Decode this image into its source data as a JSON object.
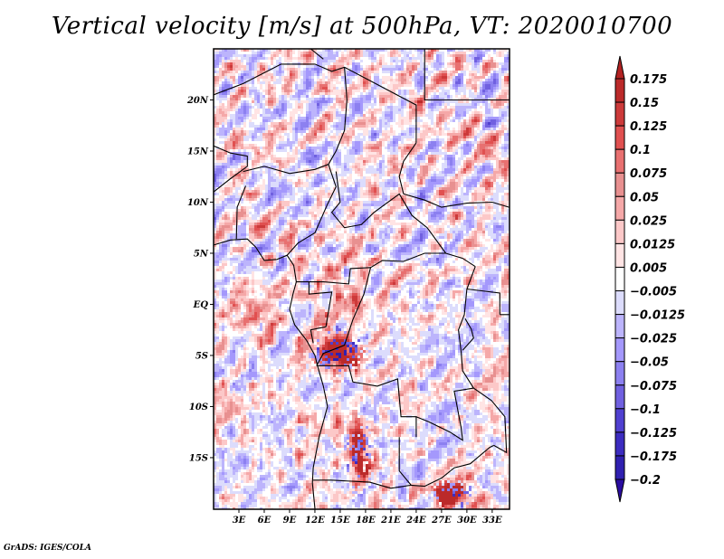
{
  "title": "Vertical velocity [m/s] at 500hPa, VT: 2020010700",
  "footer": "GrADS: IGES/COLA",
  "chart_data": {
    "type": "heatmap",
    "title": "Vertical velocity [m/s] at 500hPa, VT: 2020010700",
    "variable": "Vertical velocity",
    "units": "m/s",
    "level": "500hPa",
    "valid_time": "2020010700",
    "xlabel": "",
    "ylabel": "",
    "lon_range": [
      0,
      35
    ],
    "lat_range": [
      -20,
      25
    ],
    "lon_ticks": [
      {
        "value": 3,
        "label": "3E"
      },
      {
        "value": 6,
        "label": "6E"
      },
      {
        "value": 9,
        "label": "9E"
      },
      {
        "value": 12,
        "label": "12E"
      },
      {
        "value": 15,
        "label": "15E"
      },
      {
        "value": 18,
        "label": "18E"
      },
      {
        "value": 21,
        "label": "21E"
      },
      {
        "value": 24,
        "label": "24E"
      },
      {
        "value": 27,
        "label": "27E"
      },
      {
        "value": 30,
        "label": "30E"
      },
      {
        "value": 33,
        "label": "33E"
      }
    ],
    "lat_ticks": [
      {
        "value": 20,
        "label": "20N"
      },
      {
        "value": 15,
        "label": "15N"
      },
      {
        "value": 10,
        "label": "10N"
      },
      {
        "value": 5,
        "label": "5N"
      },
      {
        "value": 0,
        "label": "EQ"
      },
      {
        "value": -5,
        "label": "5S"
      },
      {
        "value": -10,
        "label": "10S"
      },
      {
        "value": -15,
        "label": "15S"
      }
    ],
    "colorbar": {
      "position": "right",
      "levels": [
        "0.175",
        "0.15",
        "0.125",
        "0.1",
        "0.075",
        "0.05",
        "0.025",
        "0.0125",
        "0.005",
        "−0.005",
        "−0.0125",
        "−0.025",
        "−0.05",
        "−0.075",
        "−0.1",
        "−0.125",
        "−0.175",
        "−0.2"
      ],
      "top_triangle_color": "#b22222",
      "bottom_triangle_color": "#2a0ca0",
      "box_colors": [
        "#bb2a2a",
        "#cc3a3a",
        "#e05050",
        "#e87070",
        "#e89090",
        "#f5a8a8",
        "#fcc8c8",
        "#ffe4e4",
        "#ffffff",
        "#dcdcfc",
        "#bcb4fc",
        "#a498fc",
        "#8c80f0",
        "#7060e0",
        "#5040d0",
        "#3c2cc0",
        "#3020b0"
      ]
    },
    "field_description": "Filled contours of 500hPa vertical velocity over Central/West Africa; mostly weak mixed positive/negative values with strong positive (red) cores over coastal Congo/Angola (~12-16E, 3-8S), Angola highlands (~15-18E, 12-18S) and Zambia (~27-29E, 17-19S); diagonal SW-NE banding across Chad/Sudan.",
    "grid": false,
    "coastlines_and_borders": true
  }
}
